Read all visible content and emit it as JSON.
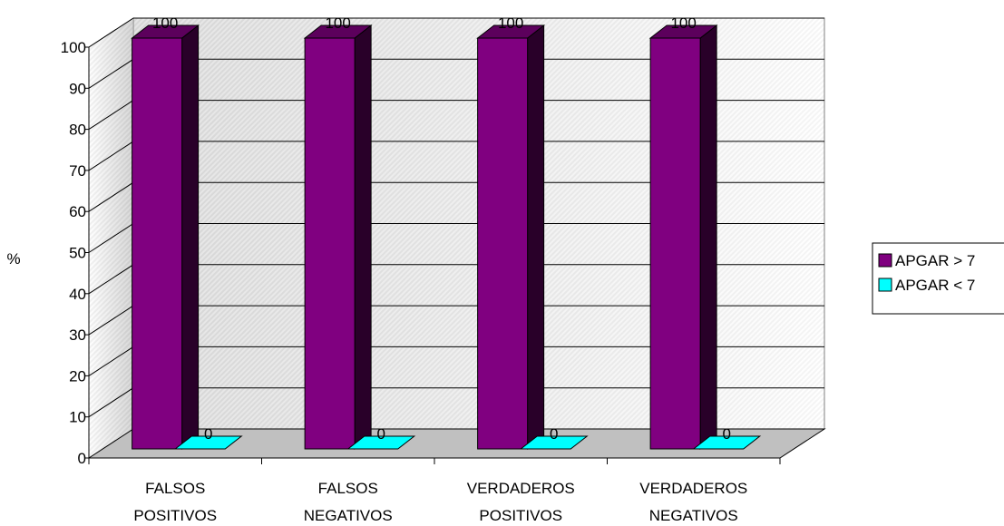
{
  "chart_data": {
    "type": "bar",
    "categories": [
      [
        "FALSOS",
        "POSITIVOS"
      ],
      [
        "FALSOS",
        "NEGATIVOS"
      ],
      [
        "VERDADEROS",
        "POSITIVOS"
      ],
      [
        "VERDADEROS",
        "NEGATIVOS"
      ]
    ],
    "series": [
      {
        "name": "APGAR > 7",
        "values": [
          100,
          100,
          100,
          100
        ],
        "color": "#800080"
      },
      {
        "name": "APGAR < 7",
        "values": [
          0,
          0,
          0,
          0
        ],
        "color": "#00ffff"
      }
    ],
    "ylabel": "%",
    "ylim": [
      0,
      100
    ],
    "yticks": [
      0,
      10,
      20,
      30,
      40,
      50,
      60,
      70,
      80,
      90,
      100
    ],
    "grid": true,
    "legend_position": "right",
    "data_labels": true,
    "style": "3d-bar"
  }
}
